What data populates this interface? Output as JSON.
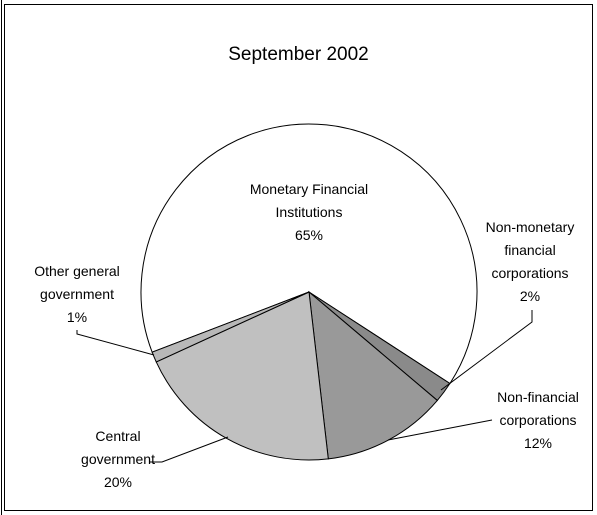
{
  "chart_data": {
    "type": "pie",
    "title": "September 2002",
    "categories": [
      "Monetary Financial Institutions",
      "Non-monetary financial corporations",
      "Non-financial corporations",
      "Central government",
      "Other general government"
    ],
    "values": [
      65,
      2,
      12,
      20,
      1
    ],
    "value_labels": [
      "65%",
      "2%",
      "12%",
      "20%",
      "1%"
    ],
    "colors": [
      "#ffffff",
      "#8a8a8a",
      "#999999",
      "#c0c0c0",
      "#b8b8b8"
    ]
  }
}
